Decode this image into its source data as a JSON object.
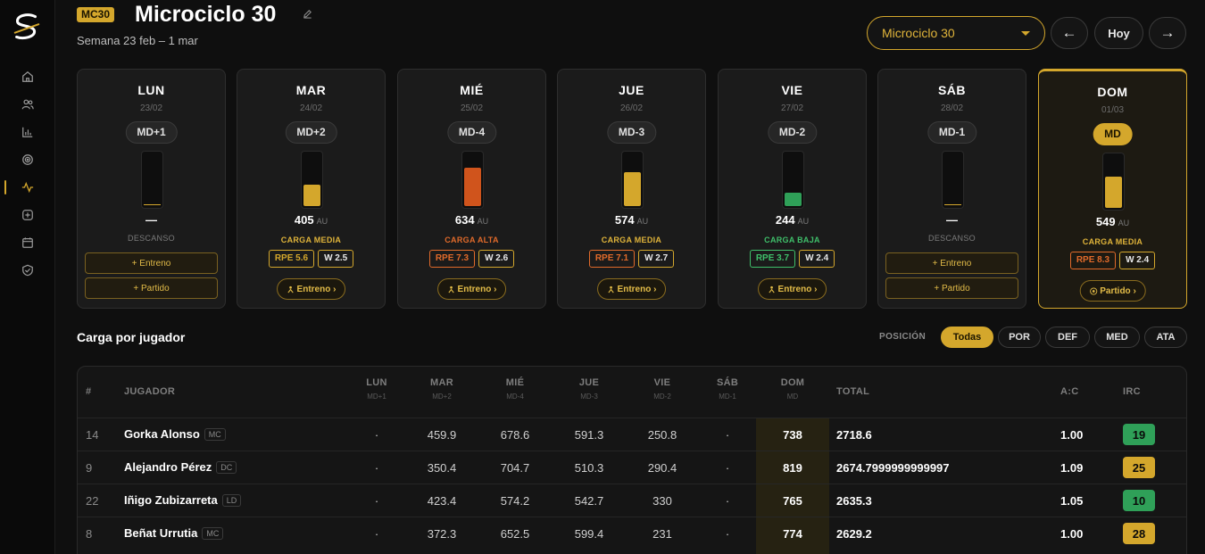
{
  "header": {
    "badge": "MC30",
    "title": "Microciclo 30",
    "week": "Semana 23 feb – 1 mar",
    "select_value": "Microciclo 30",
    "prev_label": "←",
    "today_label": "Hoy",
    "next_label": "→"
  },
  "sidebar": {
    "items": [
      {
        "icon": "home-icon"
      },
      {
        "icon": "users-icon"
      },
      {
        "icon": "bar-chart-icon"
      },
      {
        "icon": "target-icon"
      },
      {
        "icon": "activity-icon",
        "active": true
      },
      {
        "icon": "plus-square-icon"
      },
      {
        "icon": "calendar-icon"
      },
      {
        "icon": "shield-icon"
      }
    ]
  },
  "days": [
    {
      "name": "LUN",
      "date": "23/02",
      "md": "MD+1",
      "rest": true,
      "rest_label": "DESCANSO",
      "value": "—",
      "buttons": [
        "+ Entreno",
        "+ Partido"
      ]
    },
    {
      "name": "MAR",
      "date": "24/02",
      "md": "MD+2",
      "value": "405",
      "unit": "AU",
      "level": "CARGA MEDIA",
      "level_color": "#e0b43a",
      "fill": 0.4,
      "fill_color": "#d4a72c",
      "rpe": "RPE 5.6",
      "rpe_color": "#d4a72c",
      "w": "W 2.5",
      "session": "Entreno ›",
      "session_icon": "person-icon"
    },
    {
      "name": "MIÉ",
      "date": "25/02",
      "md": "MD-4",
      "value": "634",
      "unit": "AU",
      "level": "CARGA ALTA",
      "level_color": "#e06a2a",
      "fill": 0.7,
      "fill_color": "#d0541c",
      "rpe": "RPE 7.3",
      "rpe_color": "#e06a2a",
      "w": "W 2.6",
      "session": "Entreno ›",
      "session_icon": "person-icon"
    },
    {
      "name": "JUE",
      "date": "26/02",
      "md": "MD-3",
      "value": "574",
      "unit": "AU",
      "level": "CARGA MEDIA",
      "level_color": "#e0b43a",
      "fill": 0.62,
      "fill_color": "#d4a72c",
      "rpe": "RPE 7.1",
      "rpe_color": "#e06a2a",
      "w": "W 2.7",
      "session": "Entreno ›",
      "session_icon": "person-icon"
    },
    {
      "name": "VIE",
      "date": "27/02",
      "md": "MD-2",
      "value": "244",
      "unit": "AU",
      "level": "CARGA BAJA",
      "level_color": "#3fbf6a",
      "fill": 0.25,
      "fill_color": "#2fa058",
      "rpe": "RPE 3.7",
      "rpe_color": "#3fbf6a",
      "w": "W 2.4",
      "session": "Entreno ›",
      "session_icon": "person-icon"
    },
    {
      "name": "SÁB",
      "date": "28/02",
      "md": "MD-1",
      "rest": true,
      "rest_label": "DESCANSO",
      "value": "—",
      "buttons": [
        "+ Entreno",
        "+ Partido"
      ]
    },
    {
      "name": "DOM",
      "date": "01/03",
      "md": "MD",
      "today": true,
      "value": "549",
      "unit": "AU",
      "level": "CARGA MEDIA",
      "level_color": "#e0b43a",
      "fill": 0.57,
      "fill_color": "#d4a72c",
      "rpe": "RPE 8.3",
      "rpe_color": "#e06a2a",
      "w": "W 2.4",
      "session": "Partido ›",
      "session_icon": "ball-icon"
    }
  ],
  "players_section": {
    "title": "Carga por jugador",
    "position_label": "POSICIÓN",
    "filters": [
      "Todas",
      "POR",
      "DEF",
      "MED",
      "ATA"
    ],
    "active_filter": "Todas"
  },
  "table": {
    "headers": {
      "num": "#",
      "player": "JUGADOR",
      "total": "TOTAL",
      "ac": "A:C",
      "irc": "IRC"
    },
    "day_headers": [
      {
        "d": "LUN",
        "md": "MD+1"
      },
      {
        "d": "MAR",
        "md": "MD+2"
      },
      {
        "d": "MIÉ",
        "md": "MD-4"
      },
      {
        "d": "JUE",
        "md": "MD-3"
      },
      {
        "d": "VIE",
        "md": "MD-2"
      },
      {
        "d": "SÁB",
        "md": "MD-1"
      },
      {
        "d": "DOM",
        "md": "MD"
      }
    ],
    "rows": [
      {
        "num": "14",
        "name": "Gorka Alonso",
        "pos": "MC",
        "lun": "·",
        "mar": "459.9",
        "mie": "678.6",
        "jue": "591.3",
        "vie": "250.8",
        "sab": "·",
        "dom": "738",
        "total": "2718.6",
        "ac": "1.00",
        "irc": "19",
        "irc_color": "#2fa058"
      },
      {
        "num": "9",
        "name": "Alejandro Pérez",
        "pos": "DC",
        "lun": "·",
        "mar": "350.4",
        "mie": "704.7",
        "jue": "510.3",
        "vie": "290.4",
        "sab": "·",
        "dom": "819",
        "total": "2674.7999999999997",
        "ac": "1.09",
        "irc": "25",
        "irc_color": "#d4a72c"
      },
      {
        "num": "22",
        "name": "Iñigo Zubizarreta",
        "pos": "LD",
        "lun": "·",
        "mar": "423.4",
        "mie": "574.2",
        "jue": "542.7",
        "vie": "330",
        "sab": "·",
        "dom": "765",
        "total": "2635.3",
        "ac": "1.05",
        "irc": "10",
        "irc_color": "#2fa058"
      },
      {
        "num": "8",
        "name": "Beñat Urrutia",
        "pos": "MC",
        "lun": "·",
        "mar": "372.3",
        "mie": "652.5",
        "jue": "599.4",
        "vie": "231",
        "sab": "·",
        "dom": "774",
        "total": "2629.2",
        "ac": "1.00",
        "irc": "28",
        "irc_color": "#d4a72c"
      }
    ]
  }
}
